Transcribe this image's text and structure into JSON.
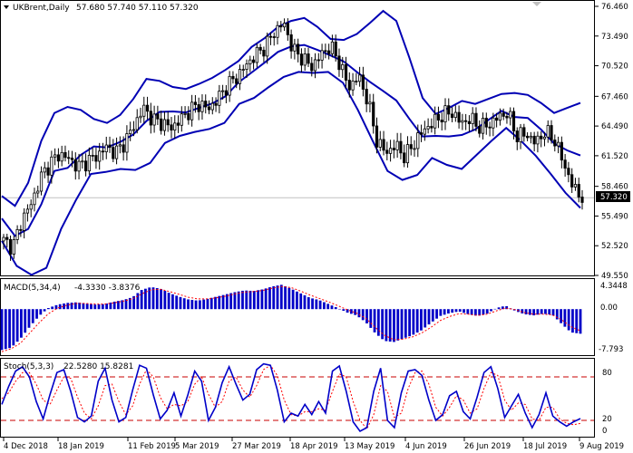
{
  "header": {
    "symbol": "UKBrent,Daily",
    "ohlc": "57.680 57.740 57.110 57.320"
  },
  "price_panel": {
    "y_ticks": [
      "76.460",
      "73.490",
      "70.520",
      "67.460",
      "64.490",
      "61.520",
      "58.460",
      "55.490",
      "52.520",
      "49.550"
    ],
    "current_price_label": "57.320"
  },
  "macd_panel": {
    "title": "MACD(5,34,4)",
    "values": "-4.3330 -3.8376",
    "y_ticks": [
      "4.3448",
      "0.00",
      "-7.793"
    ]
  },
  "stoch_panel": {
    "title": "Stoch(5,3,3)",
    "values": "22.5280 15.8281",
    "y_ticks": [
      "80",
      "20",
      "0"
    ]
  },
  "x_axis": {
    "labels": [
      "4 Dec 2018",
      "18 Jan 2019",
      "11 Feb 2019",
      "5 Mar 2019",
      "27 Mar 2019",
      "18 Apr 2019",
      "13 May 2019",
      "4 Jun 2019",
      "26 Jun 2019",
      "18 Jul 2019",
      "9 Aug 2019"
    ]
  },
  "colors": {
    "background": "#ffffff",
    "bollinger": "#0000b4",
    "candle": "#000000",
    "histogram": "#0000c8",
    "signal": "#ff0000",
    "stoch_main": "#0000c8",
    "stoch_signal": "#ff0000",
    "level_line": "#c80000"
  },
  "chart_data": [
    {
      "type": "candlestick",
      "title": "UKBrent,Daily",
      "ylim": [
        49.55,
        76.46
      ],
      "x": [
        "4 Dec 2018",
        "18 Jan 2019",
        "11 Feb 2019",
        "5 Mar 2019",
        "27 Mar 2019",
        "18 Apr 2019",
        "13 May 2019",
        "4 Jun 2019",
        "26 Jun 2019",
        "18 Jul 2019",
        "9 Aug 2019"
      ],
      "close_path": [
        53.0,
        52.4,
        55.2,
        56.8,
        59.4,
        60.8,
        61.7,
        61.2,
        60.4,
        61.0,
        61.5,
        62.4,
        61.8,
        62.9,
        64.6,
        66.3,
        65.1,
        64.8,
        64.3,
        65.2,
        66.1,
        66.7,
        66.2,
        67.3,
        68.6,
        69.4,
        70.6,
        71.6,
        72.4,
        73.9,
        74.8,
        72.1,
        71.3,
        70.4,
        71.6,
        72.5,
        70.8,
        68.3,
        69.5,
        67.1,
        63.0,
        61.8,
        62.6,
        61.4,
        62.8,
        64.1,
        64.8,
        65.6,
        65.9,
        64.8,
        65.2,
        64.4,
        64.6,
        65.4,
        65.8,
        63.5,
        63.7,
        62.8,
        63.9,
        63.2,
        60.8,
        58.4,
        57.32
      ],
      "bollinger_upper": [
        57.5,
        56.5,
        58.8,
        63.0,
        65.8,
        66.4,
        66.1,
        65.2,
        64.8,
        65.6,
        67.2,
        69.2,
        69.0,
        68.4,
        68.2,
        68.7,
        69.3,
        70.1,
        71.0,
        72.4,
        73.3,
        74.4,
        75.0,
        75.3,
        74.4,
        73.2,
        73.1,
        73.7,
        74.8,
        76.0,
        75.0,
        71.3,
        67.3,
        65.7,
        66.3,
        67.0,
        66.7,
        67.2,
        67.7,
        67.8,
        67.6,
        66.8,
        65.8,
        66.3,
        66.8
      ],
      "bollinger_lower": [
        53.0,
        50.5,
        49.6,
        50.3,
        54.2,
        57.1,
        59.7,
        59.9,
        60.2,
        60.1,
        60.8,
        62.8,
        63.5,
        63.9,
        64.2,
        64.8,
        66.7,
        67.3,
        68.4,
        69.4,
        69.9,
        69.8,
        69.9,
        68.8,
        66.1,
        63.0,
        60.0,
        59.1,
        59.6,
        61.3,
        60.6,
        60.2,
        61.6,
        63.0,
        64.3,
        63.0,
        61.5,
        59.7,
        57.8,
        56.3
      ]
    },
    {
      "type": "bar",
      "title": "MACD(5,34,4)",
      "ylim": [
        -7.793,
        4.3448
      ],
      "histogram": [
        -7.2,
        -6.8,
        -5.2,
        -3.1,
        -1.2,
        0.2,
        0.8,
        1.1,
        1.2,
        1.0,
        0.8,
        0.9,
        1.3,
        1.6,
        2.1,
        3.4,
        3.9,
        3.6,
        2.8,
        2.2,
        1.7,
        1.5,
        1.8,
        2.2,
        2.6,
        3.0,
        3.3,
        3.2,
        3.5,
        4.0,
        4.3,
        3.6,
        2.8,
        2.0,
        1.6,
        0.9,
        0.2,
        -0.6,
        -1.1,
        -2.3,
        -4.2,
        -5.6,
        -5.8,
        -5.2,
        -4.6,
        -3.7,
        -2.4,
        -1.2,
        -0.7,
        -0.4,
        -0.9,
        -1.2,
        -0.8,
        0.2,
        0.6,
        -0.3,
        -0.9,
        -1.1,
        -0.8,
        -1.0,
        -2.6,
        -4.1,
        -4.333
      ],
      "signal": [
        -7.5,
        -7.0,
        -6.0,
        -4.2,
        -2.4,
        -0.8,
        0.2,
        0.7,
        1.0,
        1.0,
        0.9,
        0.9,
        1.1,
        1.4,
        1.8,
        2.7,
        3.4,
        3.5,
        3.1,
        2.6,
        2.1,
        1.8,
        1.8,
        2.0,
        2.3,
        2.7,
        3.0,
        3.1,
        3.3,
        3.7,
        4.0,
        3.8,
        3.2,
        2.5,
        1.9,
        1.3,
        0.6,
        -0.1,
        -0.7,
        -1.6,
        -3.2,
        -4.6,
        -5.4,
        -5.3,
        -4.9,
        -4.2,
        -3.2,
        -2.0,
        -1.3,
        -0.8,
        -0.9,
        -1.1,
        -0.9,
        -0.3,
        0.2,
        -0.1,
        -0.6,
        -0.9,
        -0.9,
        -1.0,
        -1.9,
        -3.1,
        -3.8376
      ]
    },
    {
      "type": "line",
      "title": "Stoch(5,3,3)",
      "ylim": [
        0,
        100
      ],
      "main": [
        42,
        67,
        88,
        94,
        80,
        46,
        22,
        56,
        86,
        90,
        60,
        24,
        18,
        26,
        74,
        92,
        48,
        18,
        24,
        62,
        96,
        92,
        55,
        22,
        34,
        58,
        26,
        55,
        88,
        74,
        20,
        38,
        72,
        94,
        70,
        48,
        56,
        90,
        98,
        96,
        62,
        18,
        30,
        26,
        42,
        28,
        46,
        30,
        88,
        95,
        60,
        18,
        5,
        10,
        60,
        92,
        20,
        10,
        58,
        88,
        90,
        82,
        48,
        20,
        28,
        54,
        60,
        32,
        22,
        52,
        86,
        94,
        64,
        24,
        40,
        56,
        30,
        10,
        28,
        58,
        26,
        18,
        12,
        18,
        22.528
      ],
      "signal": [
        50,
        58,
        74,
        86,
        86,
        70,
        48,
        42,
        62,
        80,
        78,
        52,
        30,
        22,
        40,
        68,
        70,
        46,
        28,
        40,
        70,
        90,
        80,
        52,
        36,
        42,
        40,
        46,
        70,
        80,
        56,
        38,
        46,
        74,
        80,
        62,
        52,
        68,
        90,
        96,
        82,
        48,
        28,
        26,
        32,
        32,
        36,
        34,
        60,
        84,
        80,
        46,
        20,
        8,
        28,
        68,
        60,
        24,
        30,
        64,
        86,
        88,
        70,
        38,
        26,
        38,
        54,
        48,
        30,
        36,
        64,
        86,
        82,
        48,
        34,
        44,
        42,
        22,
        20,
        38,
        38,
        22,
        16,
        14,
        15.8281
      ],
      "levels": [
        80,
        20
      ]
    }
  ]
}
